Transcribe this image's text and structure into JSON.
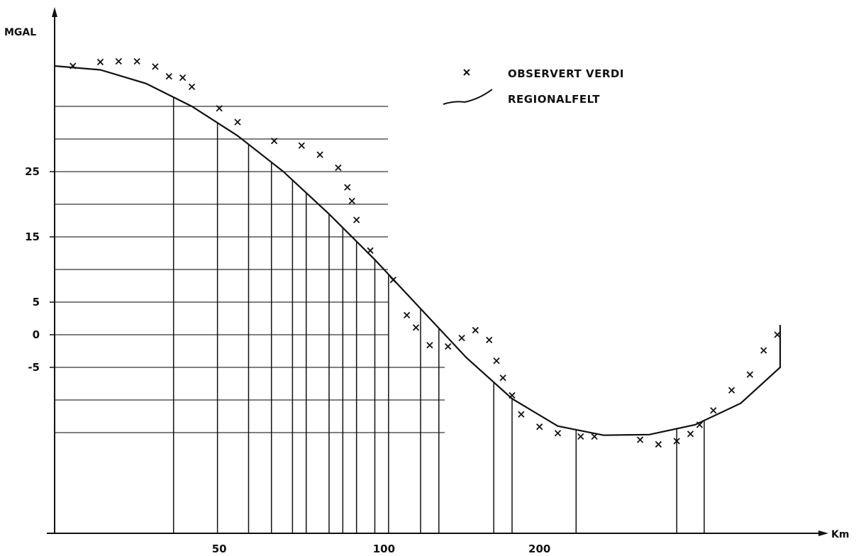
{
  "chart_data": {
    "type": "line",
    "ylabel": "MGAL",
    "xlabel": "Km",
    "y_ticks": [
      {
        "value": 25,
        "label": "25"
      },
      {
        "value": 15,
        "label": "15"
      },
      {
        "value": 5,
        "label": "5"
      },
      {
        "value": 0,
        "label": "0"
      },
      {
        "value": -5,
        "label": "-5"
      }
    ],
    "x_ticks": [
      {
        "label": "50"
      },
      {
        "label": "100"
      },
      {
        "label": "200"
      }
    ],
    "legend": {
      "placement": "top-right",
      "entries": [
        {
          "marker": "cross",
          "label": "OBSERVERT  VERDI"
        },
        {
          "marker": "line",
          "label": "REGIONALFELT"
        }
      ]
    },
    "series": [
      {
        "name": "OBSERVERT  VERDI",
        "style": "cross-markers",
        "points": [
          [
            0.02,
            41.2
          ],
          [
            0.05,
            41.8
          ],
          [
            0.07,
            41.9
          ],
          [
            0.09,
            41.9
          ],
          [
            0.11,
            41.1
          ],
          [
            0.125,
            39.6
          ],
          [
            0.14,
            39.4
          ],
          [
            0.15,
            38.0
          ],
          [
            0.18,
            34.7
          ],
          [
            0.2,
            32.6
          ],
          [
            0.24,
            29.7
          ],
          [
            0.27,
            29.0
          ],
          [
            0.29,
            27.6
          ],
          [
            0.31,
            25.6
          ],
          [
            0.32,
            22.6
          ],
          [
            0.325,
            20.5
          ],
          [
            0.33,
            17.6
          ],
          [
            0.345,
            12.9
          ],
          [
            0.37,
            8.4
          ],
          [
            0.385,
            3.0
          ],
          [
            0.395,
            1.1
          ],
          [
            0.41,
            -1.6
          ],
          [
            0.43,
            -1.8
          ],
          [
            0.445,
            -0.5
          ],
          [
            0.46,
            0.7
          ],
          [
            0.475,
            -0.8
          ],
          [
            0.483,
            -4.0
          ],
          [
            0.49,
            -6.6
          ],
          [
            0.5,
            -9.3
          ],
          [
            0.51,
            -12.2
          ],
          [
            0.53,
            -14.1
          ],
          [
            0.55,
            -15.1
          ],
          [
            0.575,
            -15.6
          ],
          [
            0.59,
            -15.6
          ],
          [
            0.64,
            -16.1
          ],
          [
            0.66,
            -16.8
          ],
          [
            0.68,
            -16.3
          ],
          [
            0.695,
            -15.2
          ],
          [
            0.705,
            -13.8
          ],
          [
            0.72,
            -11.6
          ],
          [
            0.74,
            -8.5
          ],
          [
            0.76,
            -6.1
          ],
          [
            0.775,
            -2.4
          ],
          [
            0.79,
            0.0
          ]
        ]
      },
      {
        "name": "REGIONALFELT",
        "style": "solid-line",
        "points": [
          [
            0.0,
            41.2
          ],
          [
            0.05,
            40.6
          ],
          [
            0.1,
            38.5
          ],
          [
            0.15,
            35.0
          ],
          [
            0.2,
            30.5
          ],
          [
            0.25,
            25.0
          ],
          [
            0.3,
            18.5
          ],
          [
            0.35,
            11.5
          ],
          [
            0.4,
            4.0
          ],
          [
            0.45,
            -3.5
          ],
          [
            0.5,
            -9.8
          ],
          [
            0.55,
            -14.0
          ],
          [
            0.6,
            -15.4
          ],
          [
            0.65,
            -15.3
          ],
          [
            0.7,
            -13.8
          ],
          [
            0.75,
            -10.5
          ],
          [
            0.8,
            -5.0
          ],
          [
            0.85,
            1.5
          ]
        ]
      }
    ],
    "grid": false
  }
}
